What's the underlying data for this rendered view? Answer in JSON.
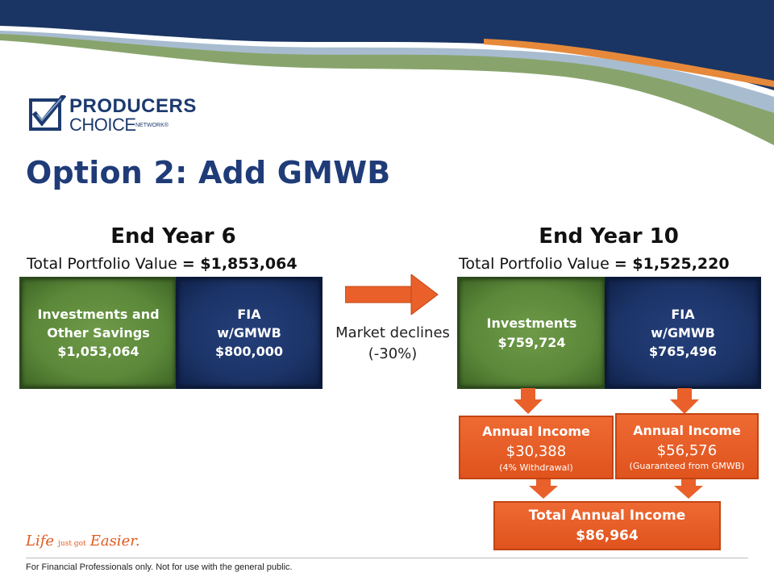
{
  "brand": {
    "logo_line1": "PRODUCERS",
    "logo_line2": "CHOICE",
    "logo_line3": "NETWORK®",
    "tagline_part1": "Life",
    "tagline_part2": "just got",
    "tagline_part3": "Easier."
  },
  "title": "Option 2: Add GMWB",
  "left": {
    "heading": "End Year 6",
    "subtitle_text": "Total Portfolio Value",
    "subtitle_value": "= $1,853,064",
    "box1": {
      "line1": "Investments and",
      "line2": "Other Savings",
      "line3": "$1,053,064"
    },
    "box2": {
      "line1": "FIA",
      "line2": "w/GMWB",
      "line3": "$800,000"
    }
  },
  "middle": {
    "line1": "Market declines",
    "line2": "(-30%)"
  },
  "right": {
    "heading": "End Year 10",
    "subtitle_text": "Total Portfolio Value",
    "subtitle_value": "= $1,525,220",
    "box1": {
      "line1": "Investments",
      "line2": "$759,724"
    },
    "box2": {
      "line1": "FIA",
      "line2": "w/GMWB",
      "line3": "$765,496"
    },
    "income1": {
      "label": "Annual Income",
      "value": "$30,388",
      "note": "(4% Withdrawal)"
    },
    "income2": {
      "label": "Annual Income",
      "value": "$56,576",
      "note": "(Guaranteed from GMWB)"
    },
    "total": {
      "label": "Total Annual Income",
      "value": "$86,964"
    }
  },
  "footer": "For Financial Professionals only. Not for use with the general public.",
  "colors": {
    "navy": "#15305f",
    "green": "#5b8839",
    "orange": "#e9602a",
    "title": "#1f3c78"
  }
}
